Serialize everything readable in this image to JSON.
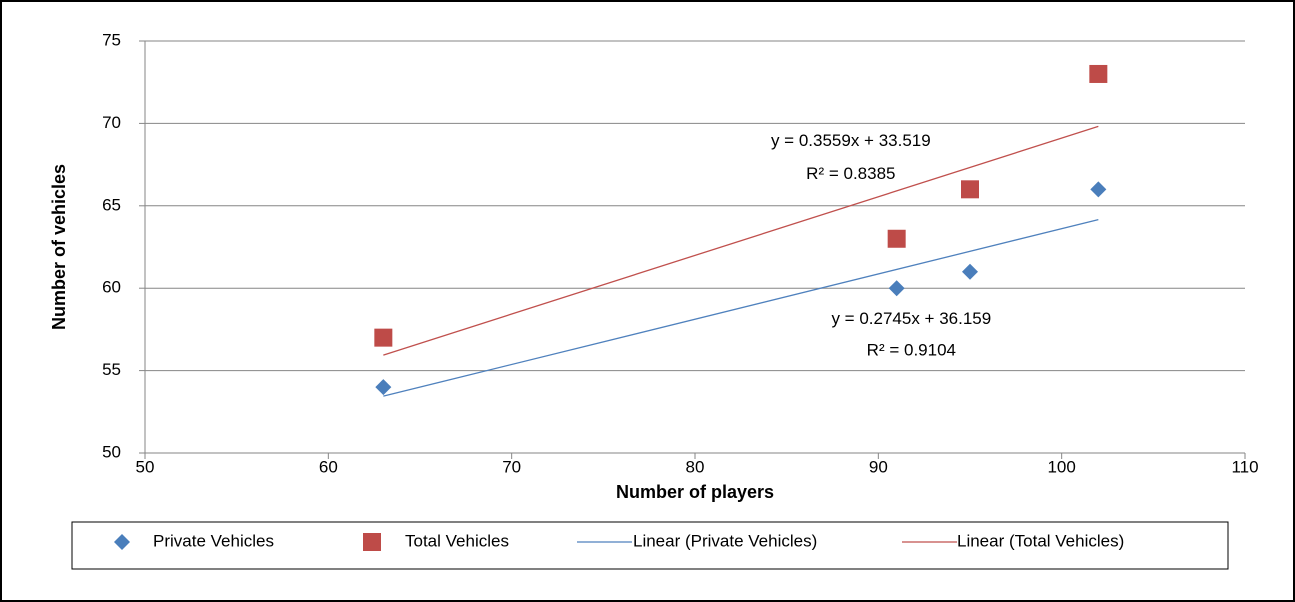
{
  "chart_data": {
    "type": "scatter",
    "x_label": "Number of players",
    "y_label": "Number of vehicles",
    "xlim": [
      50,
      110
    ],
    "xticks": [
      50,
      60,
      70,
      80,
      90,
      100,
      110
    ],
    "ylim": [
      50,
      75
    ],
    "yticks": [
      50,
      55,
      60,
      65,
      70,
      75
    ],
    "grid": true,
    "series": [
      {
        "name": "Private Vehicles",
        "type": "scatter",
        "marker": "diamond",
        "color": "#4a7ebb",
        "x": [
          63,
          91,
          95,
          102
        ],
        "values": [
          54,
          60,
          61,
          66
        ]
      },
      {
        "name": "Total Vehicles",
        "type": "scatter",
        "marker": "square",
        "color": "#be4b48",
        "x": [
          63,
          91,
          95,
          102
        ],
        "values": [
          57,
          63,
          66,
          73
        ]
      },
      {
        "name": "Linear (Private Vehicles)",
        "type": "line",
        "color": "#4f81bd",
        "x": [
          63,
          102
        ],
        "values": [
          53.45,
          64.16
        ]
      },
      {
        "name": "Linear (Total Vehicles)",
        "type": "line",
        "color": "#c0504d",
        "x": [
          63,
          102
        ],
        "values": [
          55.94,
          69.82
        ]
      }
    ],
    "annotations": [
      {
        "text": "y = 0.3559x + 33.519",
        "x": 88.5,
        "y": 68.9
      },
      {
        "text": "R² = 0.8385",
        "x": 88.5,
        "y": 66.9
      },
      {
        "text": "y = 0.2745x + 36.159",
        "x": 91.8,
        "y": 58.1
      },
      {
        "text": "R² = 0.9104",
        "x": 91.8,
        "y": 56.2
      }
    ]
  }
}
